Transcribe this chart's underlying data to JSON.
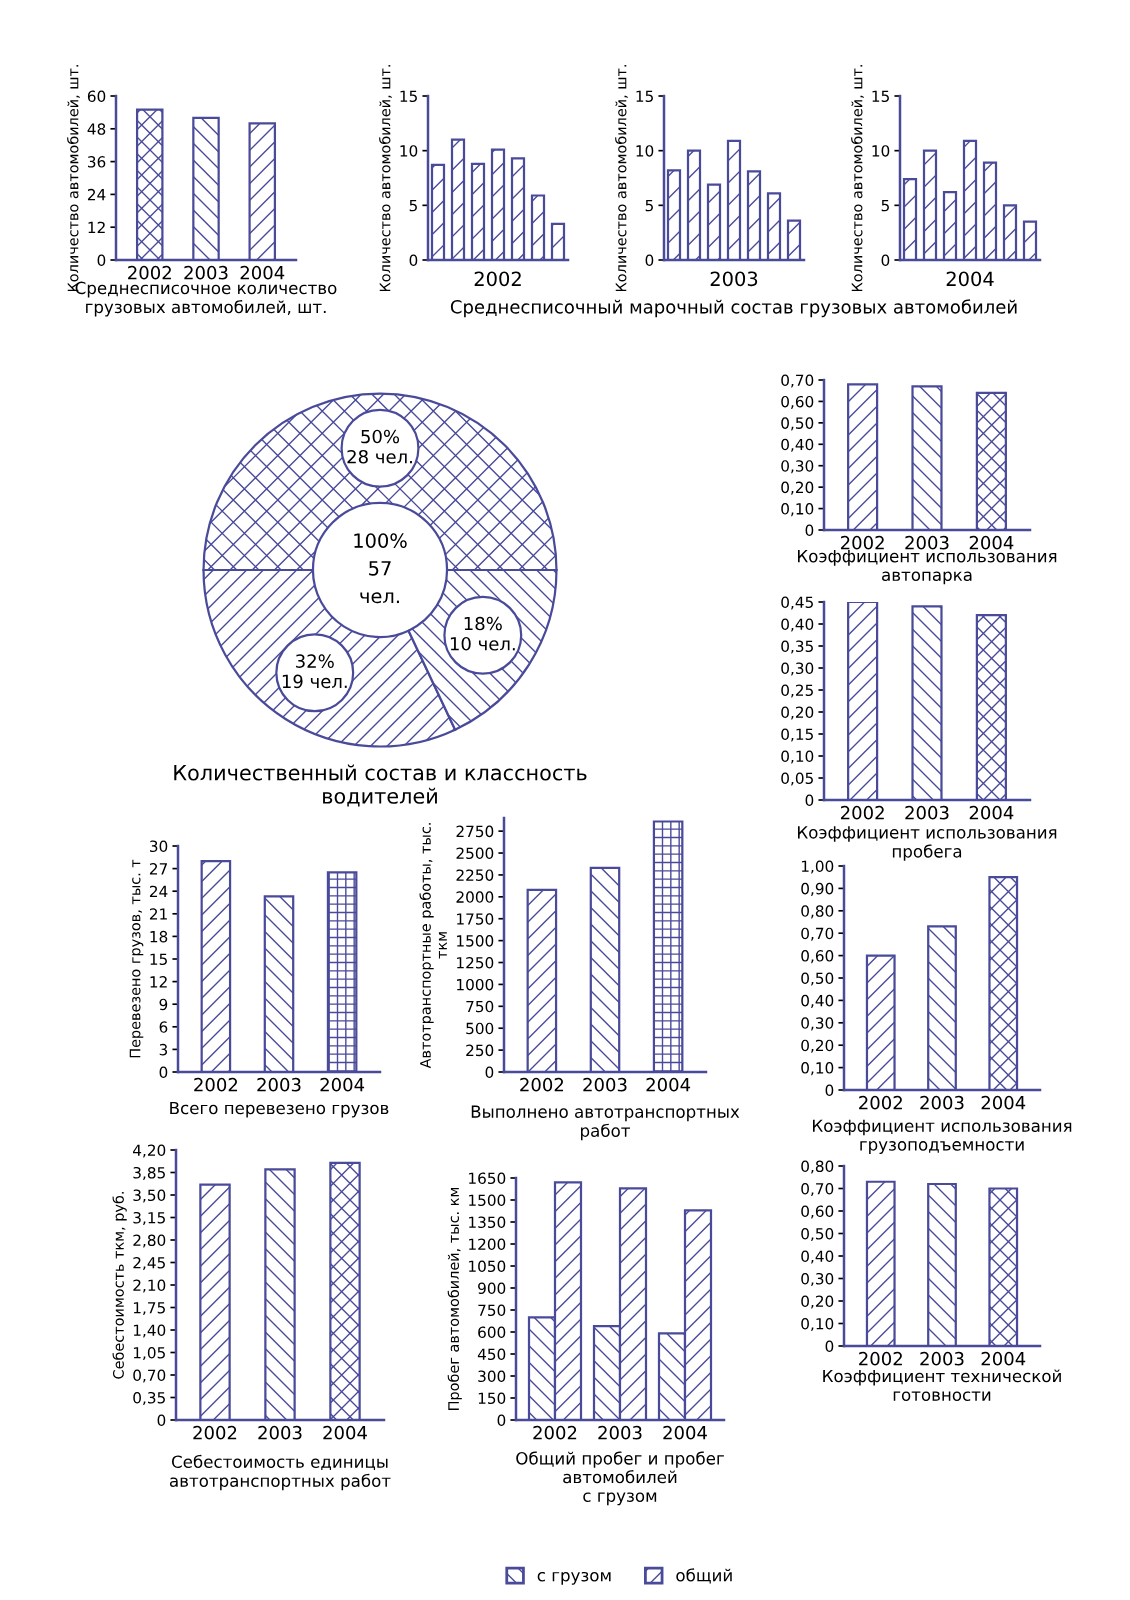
{
  "chart_data": [
    {
      "type": "bar",
      "title": "Среднесписочное количество\nгрузовых автомобилей, шт.",
      "ylabel": "Количество автомобилей, шт.",
      "categories": [
        "2002",
        "2003",
        "2004"
      ],
      "values": [
        55,
        52,
        50
      ],
      "color": "#4a4a9a",
      "ylim": [
        0,
        60
      ],
      "yticks": [
        0,
        12,
        24,
        36,
        48,
        60
      ],
      "grid": false
    },
    {
      "type": "bar",
      "xlabel": "2002",
      "ylabel": "Количество автомобилей, шт.",
      "categories": [
        null,
        null,
        null,
        null,
        null,
        null,
        null
      ],
      "values": [
        8.7,
        11.0,
        8.8,
        10.1,
        9.3,
        5.9,
        3.3
      ],
      "color": "#4a4a9a",
      "ylim": [
        0,
        15
      ],
      "yticks": [
        0,
        5,
        10,
        15
      ],
      "grid": false
    },
    {
      "type": "bar",
      "xlabel": "2003",
      "ylabel": "Количество автомобилей, шт.",
      "categories": [
        null,
        null,
        null,
        null,
        null,
        null,
        null
      ],
      "values": [
        8.2,
        10.0,
        6.9,
        10.9,
        8.1,
        6.1,
        3.6
      ],
      "color": "#4a4a9a",
      "ylim": [
        0,
        15
      ],
      "yticks": [
        0,
        5,
        10,
        15
      ],
      "grid": false,
      "annotations": [
        "Среднесписочный марочный состав грузовых автомобилей"
      ]
    },
    {
      "type": "bar",
      "xlabel": "2004",
      "ylabel": "Количество автомобилей, шт.",
      "categories": [
        null,
        null,
        null,
        null,
        null,
        null,
        null
      ],
      "values": [
        7.4,
        10.0,
        6.2,
        10.9,
        8.9,
        5.0,
        3.5
      ],
      "color": "#4a4a9a",
      "ylim": [
        0,
        15
      ],
      "yticks": [
        0,
        5,
        10,
        15
      ],
      "grid": false
    },
    {
      "type": "donut",
      "title": "Количественный состав и классность\nводителей",
      "categories": [
        null,
        null,
        null
      ],
      "values": [
        50,
        32,
        18
      ],
      "value_labels": [
        "50%\n28 чел.",
        "32%\n19 чел.",
        "18%\n10 чел."
      ],
      "colors": [
        "#4a4a9a",
        "#4a4a9a",
        "#4a4a9a"
      ],
      "annotations": [
        "100%\n57\nчел."
      ]
    },
    {
      "type": "bar",
      "title": "Коэффициент использования\nавтопарка",
      "categories": [
        "2002",
        "2003",
        "2004"
      ],
      "values": [
        0.68,
        0.67,
        0.64
      ],
      "color": "#4a4a9a",
      "ylim": [
        0,
        0.7
      ],
      "yticks": [
        0,
        {
          "value": 0.1,
          "label": "0,10"
        },
        {
          "value": 0.2,
          "label": "0,20"
        },
        {
          "value": 0.3,
          "label": "0,30"
        },
        {
          "value": 0.4,
          "label": "0,40"
        },
        {
          "value": 0.5,
          "label": "0,50"
        },
        {
          "value": 0.6,
          "label": "0,60"
        },
        {
          "value": 0.7,
          "label": "0,70"
        }
      ],
      "grid": false
    },
    {
      "type": "bar",
      "title": "Коэффициент использования\nпробега",
      "categories": [
        "2002",
        "2003",
        "2004"
      ],
      "values": [
        0.45,
        0.44,
        0.42
      ],
      "color": "#4a4a9a",
      "ylim": [
        0,
        0.45
      ],
      "yticks": [
        0,
        {
          "value": 0.05,
          "label": "0,05"
        },
        {
          "value": 0.1,
          "label": "0,10"
        },
        {
          "value": 0.15,
          "label": "0,15"
        },
        {
          "value": 0.2,
          "label": "0,20"
        },
        {
          "value": 0.25,
          "label": "0,25"
        },
        {
          "value": 0.3,
          "label": "0,30"
        },
        {
          "value": 0.35,
          "label": "0,35"
        },
        {
          "value": 0.4,
          "label": "0,40"
        },
        {
          "value": 0.45,
          "label": "0,45"
        }
      ],
      "grid": false
    },
    {
      "type": "bar",
      "title": "Коэффициент использования\nгрузоподъемности",
      "categories": [
        "2002",
        "2003",
        "2004"
      ],
      "values": [
        0.6,
        0.73,
        0.95
      ],
      "color": "#4a4a9a",
      "ylim": [
        0,
        1.0
      ],
      "yticks": [
        0,
        {
          "value": 0.1,
          "label": "0,10"
        },
        {
          "value": 0.2,
          "label": "0,20"
        },
        {
          "value": 0.3,
          "label": "0,30"
        },
        {
          "value": 0.4,
          "label": "0,40"
        },
        {
          "value": 0.5,
          "label": "0,50"
        },
        {
          "value": 0.6,
          "label": "0,60"
        },
        {
          "value": 0.7,
          "label": "0,70"
        },
        {
          "value": 0.8,
          "label": "0,80"
        },
        {
          "value": 0.9,
          "label": "0,90"
        },
        {
          "value": 1.0,
          "label": "1,00"
        }
      ],
      "grid": false
    },
    {
      "type": "bar",
      "title": "Коэффициент технической\nготовности",
      "categories": [
        "2002",
        "2003",
        "2004"
      ],
      "values": [
        0.73,
        0.72,
        0.7
      ],
      "color": "#4a4a9a",
      "ylim": [
        0,
        0.8
      ],
      "yticks": [
        0,
        {
          "value": 0.1,
          "label": "0,10"
        },
        {
          "value": 0.2,
          "label": "0,20"
        },
        {
          "value": 0.3,
          "label": "0,30"
        },
        {
          "value": 0.4,
          "label": "0,40"
        },
        {
          "value": 0.5,
          "label": "0,50"
        },
        {
          "value": 0.6,
          "label": "0,60"
        },
        {
          "value": 0.7,
          "label": "0,70"
        },
        {
          "value": 0.8,
          "label": "0,80"
        }
      ],
      "grid": false
    },
    {
      "type": "bar",
      "title": "Всего перевезено грузов",
      "ylabel": "Перевезено грузов, тыс. т",
      "categories": [
        "2002",
        "2003",
        "2004"
      ],
      "values": [
        28.0,
        23.3,
        26.5
      ],
      "color": "#4a4a9a",
      "ylim": [
        0,
        30
      ],
      "yticks": [
        0,
        3,
        6,
        9,
        12,
        15,
        18,
        21,
        24,
        27,
        30
      ],
      "grid": false
    },
    {
      "type": "bar",
      "title": "Выполнено автотранспортных\nработ",
      "ylabel": "Автотранспортные работы, тыс.\nткм",
      "categories": [
        "2002",
        "2003",
        "2004"
      ],
      "values": [
        2080,
        2330,
        2860
      ],
      "color": "#4a4a9a",
      "ylim": [
        0,
        2900
      ],
      "yticks": [
        0,
        250,
        500,
        750,
        1000,
        1250,
        1500,
        1750,
        2000,
        2250,
        2500,
        2750
      ],
      "grid": false
    },
    {
      "type": "bar",
      "title": "Себестоимость единицы\nавтотранспортных работ",
      "ylabel": "Себестоимость ткм, руб.",
      "categories": [
        "2002",
        "2003",
        "2004"
      ],
      "values": [
        3.66,
        3.9,
        4.0
      ],
      "color": "#4a4a9a",
      "ylim": [
        0,
        4.2
      ],
      "yticks": [
        0,
        {
          "value": 0.35,
          "label": "0,35"
        },
        {
          "value": 0.7,
          "label": "0,70"
        },
        {
          "value": 1.05,
          "label": "1,05"
        },
        {
          "value": 1.4,
          "label": "1,40"
        },
        {
          "value": 1.75,
          "label": "1,75"
        },
        {
          "value": 2.1,
          "label": "2,10"
        },
        {
          "value": 2.45,
          "label": "2,45"
        },
        {
          "value": 2.8,
          "label": "2,80"
        },
        {
          "value": 3.15,
          "label": "3,15"
        },
        {
          "value": 3.5,
          "label": "3,50"
        },
        {
          "value": 3.85,
          "label": "3,85"
        },
        {
          "value": 4.2,
          "label": "4,20"
        }
      ],
      "grid": false
    },
    {
      "type": "bar",
      "title": "Общий пробег и пробег\nавтомобилей\nс грузом",
      "ylabel": "Пробег автомобилей, тыс. км",
      "categories": [
        "2002",
        "2003",
        "2004"
      ],
      "series": [
        {
          "name": "с грузом",
          "color": "#4a4a9a",
          "values": [
            700,
            640,
            590
          ]
        },
        {
          "name": "общий",
          "color": "#4a4a9a",
          "values": [
            1620,
            1580,
            1430
          ]
        }
      ],
      "ylim": [
        0,
        1650
      ],
      "yticks": [
        0,
        150,
        300,
        450,
        600,
        750,
        900,
        1050,
        1200,
        1350,
        1500,
        1650
      ],
      "grid": false,
      "legend": "bottom"
    }
  ]
}
